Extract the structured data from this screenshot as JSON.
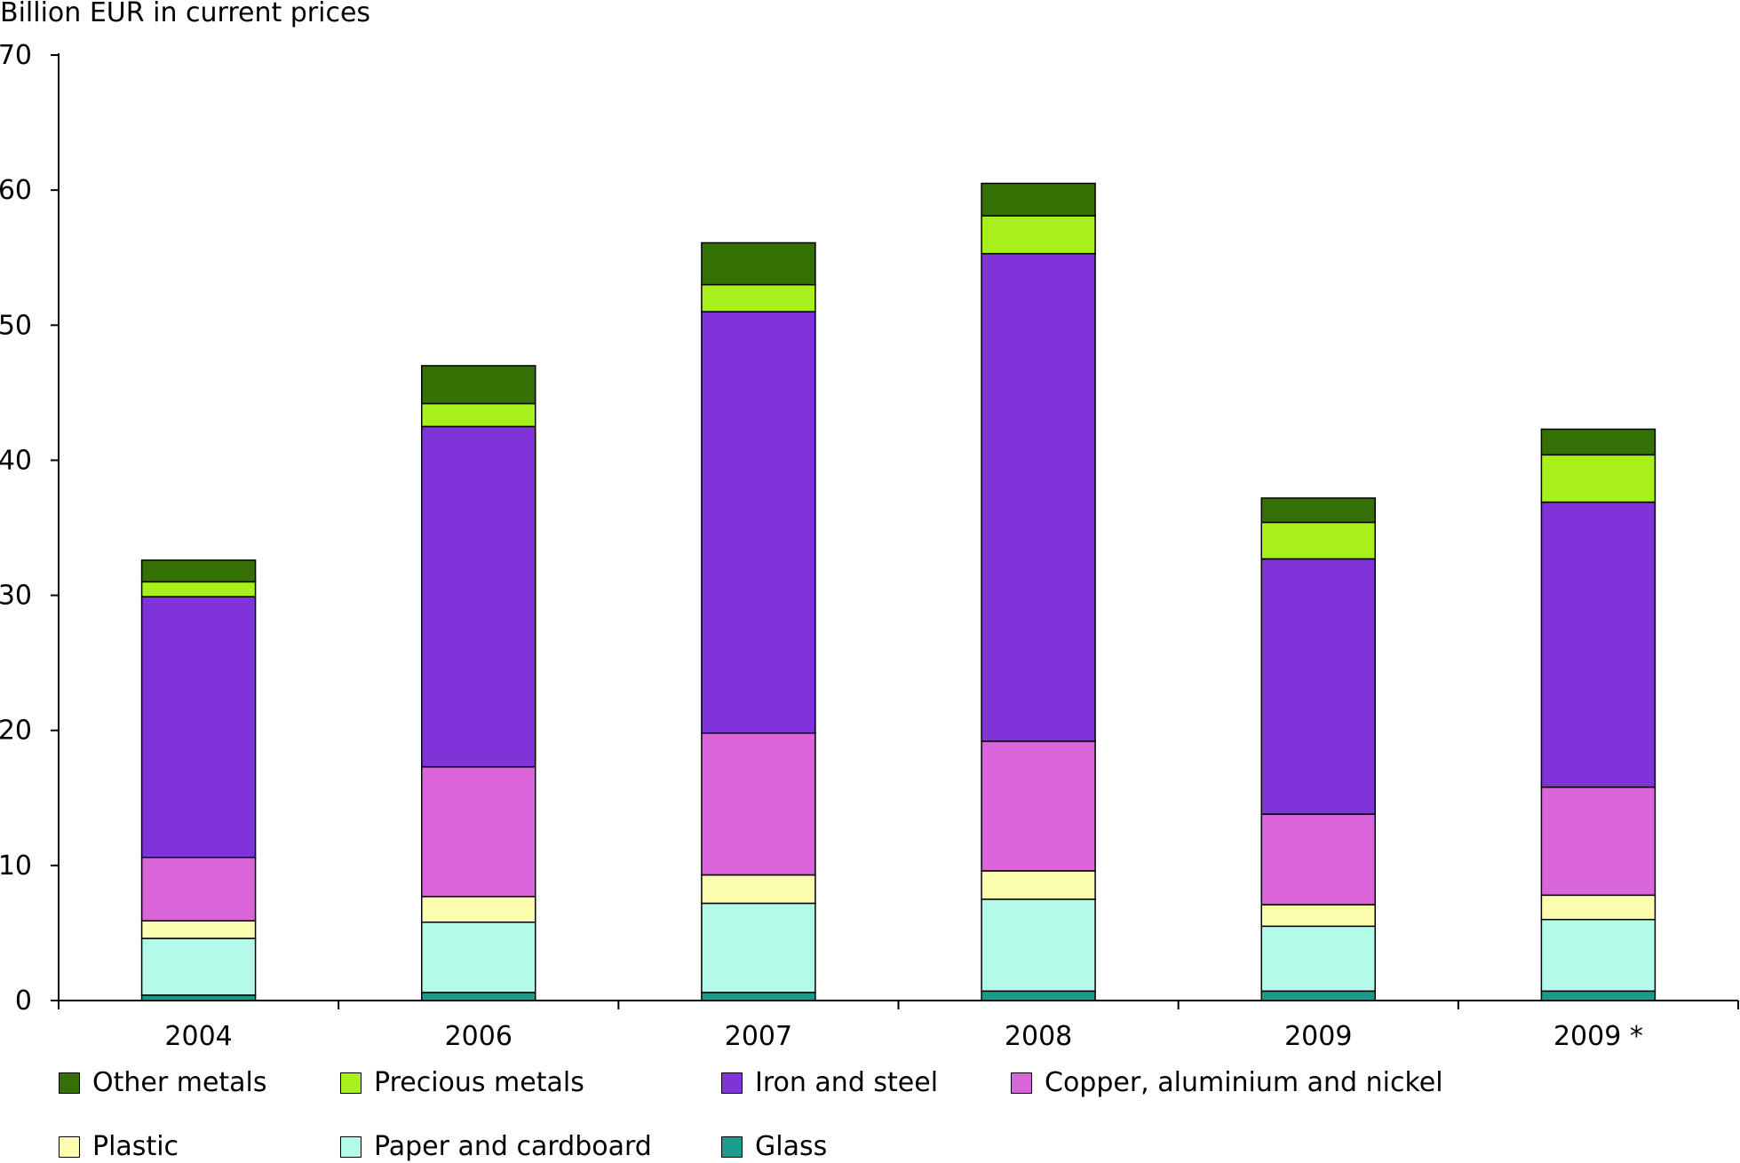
{
  "chart_data": {
    "type": "bar",
    "stacked": true,
    "title": "",
    "ylabel": "Billion EUR in current prices",
    "xlabel": "",
    "ylim": [
      0,
      70
    ],
    "yticks": [
      0,
      10,
      20,
      30,
      40,
      50,
      60,
      70
    ],
    "grid": false,
    "legend_position": "bottom",
    "categories": [
      "2004",
      "2006",
      "2007",
      "2008",
      "2009",
      "2009 *"
    ],
    "series": [
      {
        "name": "Glass",
        "color": "#1a9b8c",
        "values": [
          0.4,
          0.6,
          0.6,
          0.7,
          0.7,
          0.7
        ]
      },
      {
        "name": "Paper and cardboard",
        "color": "#b3fbe8",
        "values": [
          4.2,
          5.2,
          6.6,
          6.8,
          4.8,
          5.3
        ]
      },
      {
        "name": "Plastic",
        "color": "#fdfdb0",
        "values": [
          1.3,
          1.9,
          2.1,
          2.1,
          1.6,
          1.8
        ]
      },
      {
        "name": "Copper, aluminium and nickel",
        "color": "#da64da",
        "values": [
          4.7,
          9.6,
          10.5,
          9.6,
          6.7,
          8.0
        ]
      },
      {
        "name": "Iron and steel",
        "color": "#8033d9",
        "values": [
          19.3,
          25.2,
          31.2,
          36.1,
          18.9,
          21.1
        ]
      },
      {
        "name": "Precious metals",
        "color": "#a8f01c",
        "values": [
          1.1,
          1.7,
          2.0,
          2.8,
          2.7,
          3.5
        ]
      },
      {
        "name": "Other metals",
        "color": "#347004",
        "values": [
          1.6,
          2.8,
          3.1,
          2.4,
          1.8,
          1.9
        ]
      }
    ],
    "legend_order": [
      "Other metals",
      "Precious metals",
      "Iron and steel",
      "Copper, aluminium and nickel",
      "Plastic",
      "Paper and cardboard",
      "Glass"
    ]
  }
}
